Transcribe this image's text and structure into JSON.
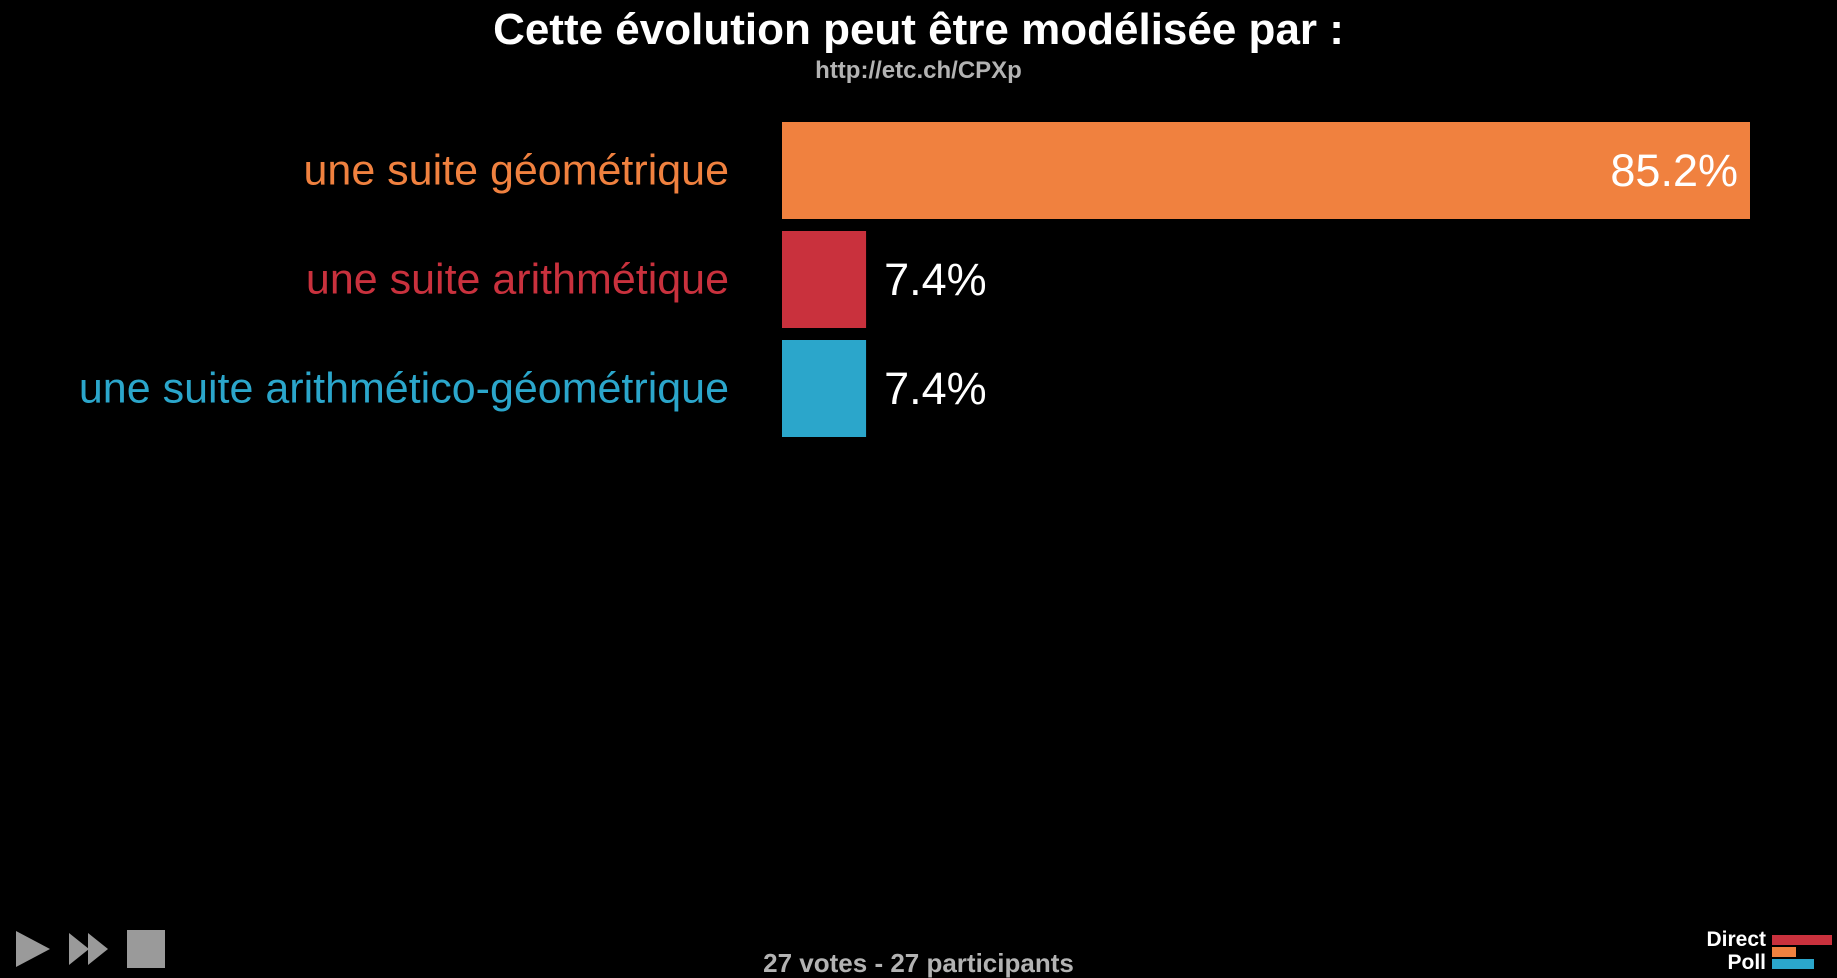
{
  "title": "Cette évolution peut être modélisée par :",
  "subtitle": "http://etc.ch/CPXp",
  "footer": "27 votes - 27 participants",
  "controls": {
    "play_icon": "play-icon",
    "fast_forward_icon": "fast-forward-icon",
    "stop_icon": "stop-icon",
    "color": "#9a9a9a"
  },
  "logo": {
    "line1": "Direct",
    "line2": "Poll",
    "colors": [
      "#c9313d",
      "#f0813f",
      "#2ba6cb"
    ]
  },
  "chart_data": {
    "type": "bar",
    "orientation": "horizontal",
    "categories": [
      "une suite géométrique",
      "une suite arithmétique",
      "une suite arithmético-géométrique"
    ],
    "values": [
      85.2,
      7.4,
      7.4
    ],
    "value_labels": [
      "85.2%",
      "7.4%",
      "7.4%"
    ],
    "colors": [
      "#f0813f",
      "#c9313d",
      "#2ba6cb"
    ],
    "unit": "%",
    "xlim": [
      0,
      85.2
    ],
    "grid": false,
    "legend": "none"
  }
}
